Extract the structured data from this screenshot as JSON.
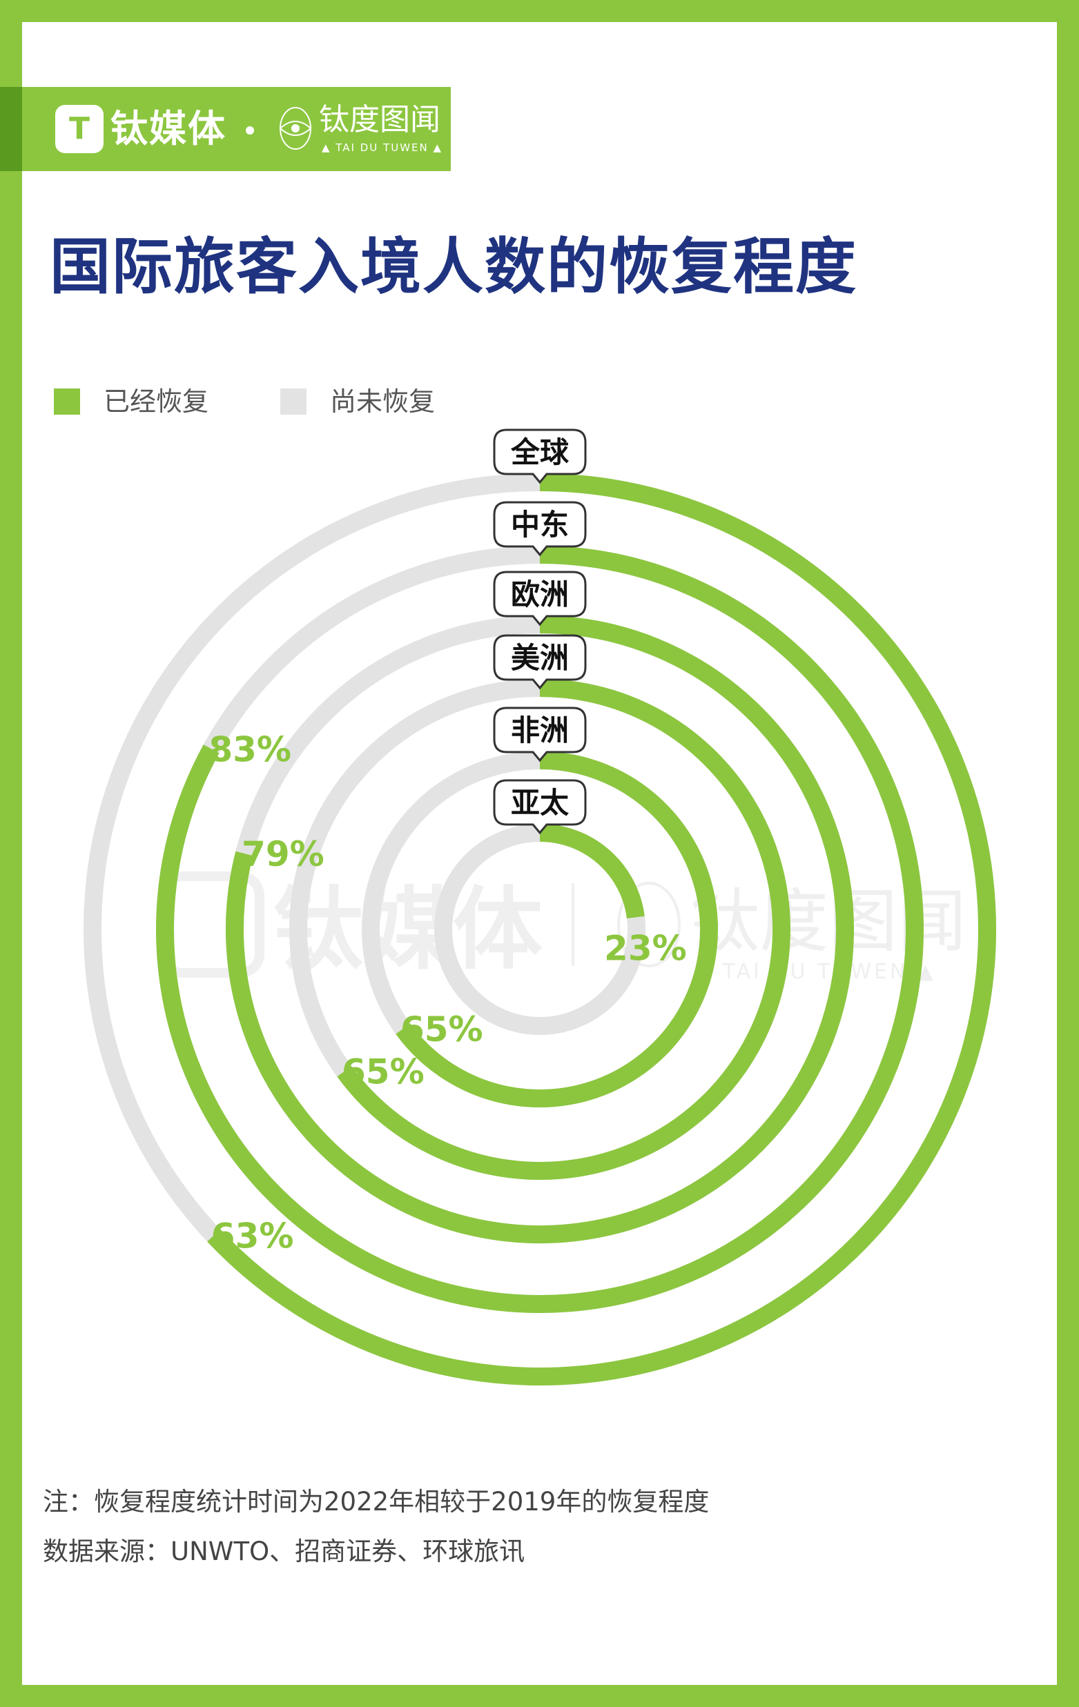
{
  "brand": {
    "logo_glyph": "T",
    "name": "钛媒体",
    "sub_name": "钛度图闻",
    "sub_name_en": "▲ TAI DU TUWEN ▲"
  },
  "watermark": {
    "name": "钛媒体",
    "sub_name": "钛度图闻",
    "sub_name_en": "▲ TAI DU TUWEN ▲"
  },
  "title": "国际旅客入境人数的恢复程度",
  "legend": {
    "recovered_label": "已经恢复",
    "unrecovered_label": "尚未恢复"
  },
  "colors": {
    "recovered": "#8cc63f",
    "unrecovered": "#e3e3e3",
    "label_box_border": "#333333",
    "title": "#1f3380"
  },
  "chart_data": {
    "type": "radial-bar",
    "unit": "%",
    "series_names": [
      "已经恢复",
      "尚未恢复"
    ],
    "categories": [
      "全球",
      "中东",
      "欧洲",
      "美洲",
      "非洲",
      "亚太"
    ],
    "values": [
      63,
      83,
      79,
      65,
      65,
      23
    ],
    "value_labels": [
      "63%",
      "83%",
      "79%",
      "65%",
      "65%",
      "23%"
    ],
    "max": 100
  },
  "notes": {
    "note": "注：恢复程度统计时间为2022年相较于2019年的恢复程度",
    "source": "数据来源：UNWTO、招商证券、环球旅讯"
  }
}
